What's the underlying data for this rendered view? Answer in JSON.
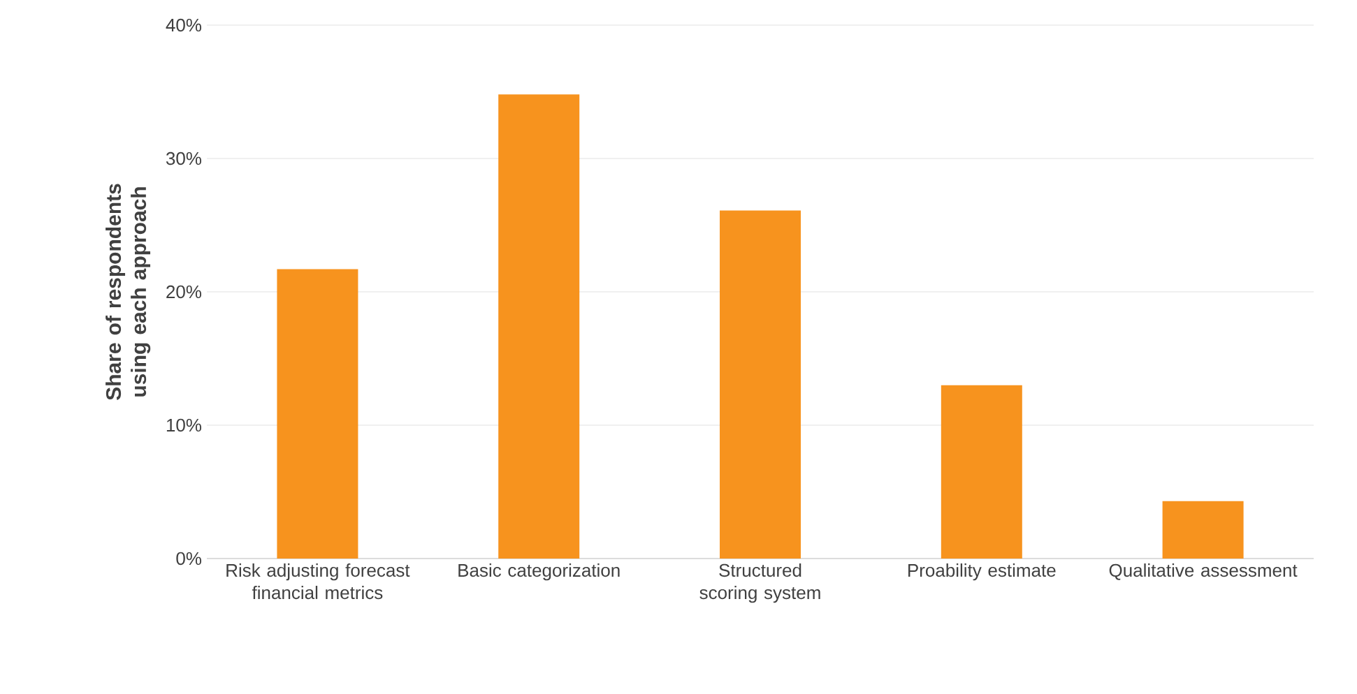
{
  "chart_data": {
    "type": "bar",
    "ylabel": "Share of respondents using each approach",
    "categories": [
      "Risk adjusting forecast financial metrics",
      "Basic categorization",
      "Structured scoring system",
      "Proability estimate",
      "Qualitative assessment"
    ],
    "values": [
      21.7,
      34.8,
      26.1,
      13.0,
      4.3
    ],
    "color": "#f7931e",
    "ylim": [
      0,
      40
    ],
    "yticks": [
      {
        "value": 0,
        "label": "0%"
      },
      {
        "value": 10,
        "label": "10%"
      },
      {
        "value": 20,
        "label": "20%"
      },
      {
        "value": 30,
        "label": "30%"
      },
      {
        "value": 40,
        "label": "40%"
      }
    ],
    "grid": "y"
  }
}
